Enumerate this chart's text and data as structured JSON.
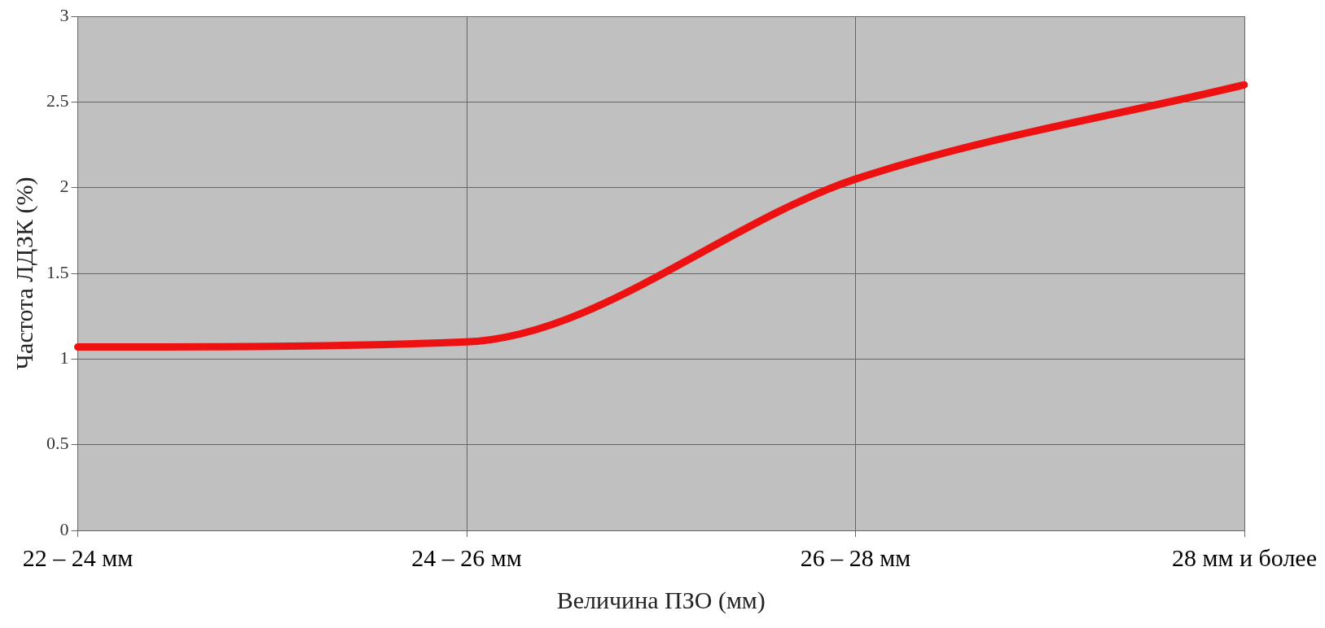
{
  "chart_data": {
    "type": "line",
    "xlabel": "Величина ПЗО (мм)",
    "ylabel": "Частота ЛДЗК (%)",
    "categories": [
      "22 – 24 мм",
      "24 – 26 мм",
      "26 – 28 мм",
      "28 мм и более"
    ],
    "series": [
      {
        "color": "#ee1111",
        "values": [
          1.07,
          1.1,
          2.05,
          2.6
        ]
      }
    ],
    "ylim": [
      0,
      3
    ],
    "yticks": [
      0,
      0.5,
      1,
      1.5,
      2,
      2.5,
      3
    ],
    "grid": true,
    "legend": false,
    "marker": "none",
    "line_style": "solid"
  }
}
